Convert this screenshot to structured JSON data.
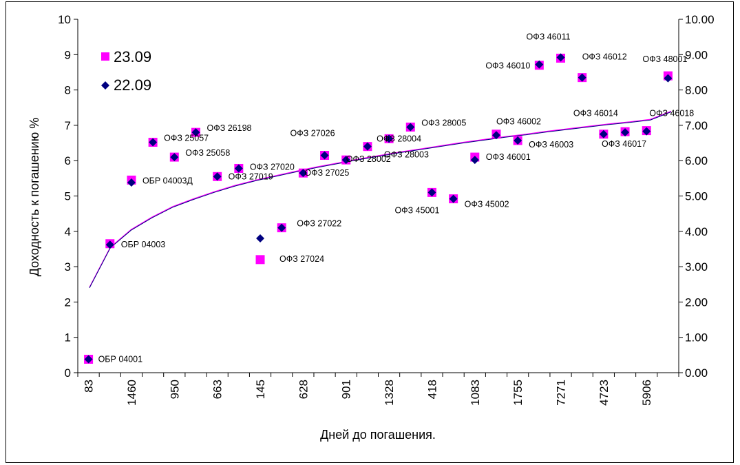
{
  "chart_data": {
    "type": "scatter",
    "xlabel": "Дней до погашения.",
    "ylabel": "Доходность к погашению %",
    "ylim": [
      0,
      10
    ],
    "y_ticks_left": [
      "0",
      "1",
      "2",
      "3",
      "4",
      "5",
      "6",
      "7",
      "8",
      "9",
      "10"
    ],
    "y_ticks_right": [
      "0.00",
      "1.00",
      "2.00",
      "3.00",
      "4.00",
      "5.00",
      "6.00",
      "7.00",
      "8.00",
      "9.00",
      "10.00"
    ],
    "x_tick_labels": [
      "83",
      "1460",
      "950",
      "663",
      "145",
      "628",
      "901",
      "1328",
      "418",
      "1083",
      "1755",
      "7271",
      "4723",
      "5906"
    ],
    "legend_position": "top-left",
    "colors": {
      "series_1": "#ff00ff",
      "series_2": "#000080",
      "trend": "#6a0dad"
    },
    "series": [
      {
        "name": "23.09",
        "marker": "square",
        "values": [
          0.38,
          3.65,
          5.45,
          6.52,
          6.1,
          6.8,
          5.55,
          5.78,
          3.2,
          4.1,
          5.65,
          6.15,
          6.02,
          6.4,
          6.62,
          6.95,
          5.1,
          4.92,
          6.1,
          6.75,
          6.57,
          8.7,
          8.9,
          8.35,
          6.75,
          6.82,
          6.85,
          8.4
        ]
      },
      {
        "name": "22.09",
        "marker": "diamond",
        "values": [
          0.38,
          3.62,
          5.38,
          6.52,
          6.1,
          6.8,
          5.55,
          5.78,
          3.8,
          4.1,
          5.65,
          6.15,
          6.02,
          6.4,
          6.62,
          6.95,
          5.1,
          4.92,
          6.02,
          6.72,
          6.57,
          8.72,
          8.92,
          8.35,
          6.75,
          6.8,
          6.83,
          8.33
        ]
      }
    ],
    "trend_values": [
      2.42,
      3.55,
      4.05,
      4.4,
      4.7,
      4.92,
      5.12,
      5.3,
      5.45,
      5.58,
      5.71,
      5.83,
      5.94,
      6.05,
      6.15,
      6.25,
      6.34,
      6.43,
      6.52,
      6.6,
      6.68,
      6.75,
      6.83,
      6.9,
      6.97,
      7.04,
      7.1,
      7.17,
      7.4
    ],
    "point_labels": [
      "ОБР 04001",
      "ОБР 04003",
      "ОБР 04003Д",
      "ОФЗ 25057",
      "ОФЗ 25058",
      "ОФЗ 26198",
      "ОФЗ 27019",
      "ОФЗ 27020",
      "ОФЗ 27024",
      "ОФЗ 27022",
      "ОФЗ 27025",
      "ОФЗ 27026",
      "ОФЗ 28002",
      "ОФЗ 28003",
      "ОФЗ 28004",
      "ОФЗ 28005",
      "ОФЗ 45001",
      "ОФЗ 45002",
      "ОФЗ 46001",
      "ОФЗ 46002",
      "ОФЗ 46003",
      "ОФЗ 46010",
      "ОФЗ 46011",
      "ОФЗ 46012",
      "ОФЗ 46014",
      "ОФЗ 46017",
      "ОФЗ 46018",
      "ОФЗ 48001"
    ]
  }
}
